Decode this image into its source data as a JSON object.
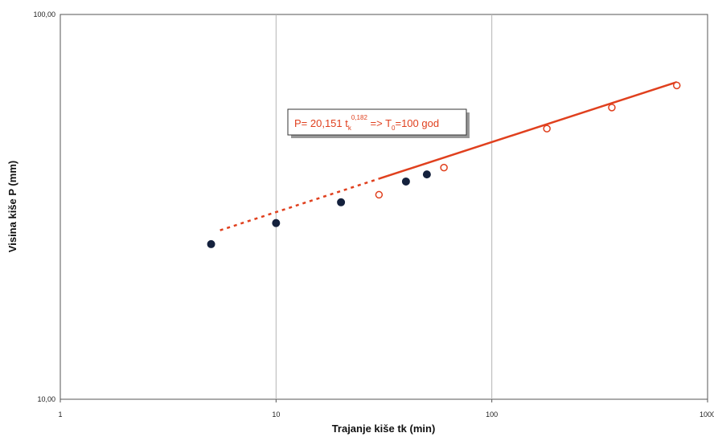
{
  "chart_data": {
    "type": "scatter",
    "x_scale": "log",
    "y_scale": "log",
    "xlim": [
      1,
      1000
    ],
    "ylim": [
      10,
      100
    ],
    "grid": "vertical",
    "xlabel": "Trajanje kiše tk (min)",
    "ylabel": "Visina kiše P (mm)",
    "x_ticks": [
      "1",
      "10",
      "100",
      "1000"
    ],
    "y_ticks": [
      "10,00",
      "100,00"
    ],
    "series": [
      {
        "marker": "filled-dot",
        "color": "#14213d",
        "points": [
          {
            "x": 5,
            "y": 25.3
          },
          {
            "x": 10,
            "y": 28.7
          },
          {
            "x": 20,
            "y": 32.5
          },
          {
            "x": 40,
            "y": 36.8
          },
          {
            "x": 50,
            "y": 38.4
          }
        ]
      },
      {
        "marker": "open-circle",
        "color": "#e0401e",
        "points": [
          {
            "x": 30,
            "y": 34.0
          },
          {
            "x": 60,
            "y": 40.0
          },
          {
            "x": 180,
            "y": 50.5
          },
          {
            "x": 360,
            "y": 57.3
          },
          {
            "x": 720,
            "y": 65.4
          }
        ]
      }
    ],
    "fit": {
      "color": "#e0401e",
      "a": 20.151,
      "b": 0.182,
      "solid_range": [
        30,
        720
      ],
      "dashed_range": [
        5.5,
        30
      ]
    },
    "annotation": {
      "prefix": "P= 20,151 t",
      "sub": "k",
      "sup": "0,182",
      "mid": " => T",
      "sub2": "0",
      "suffix": "=100 god"
    }
  }
}
